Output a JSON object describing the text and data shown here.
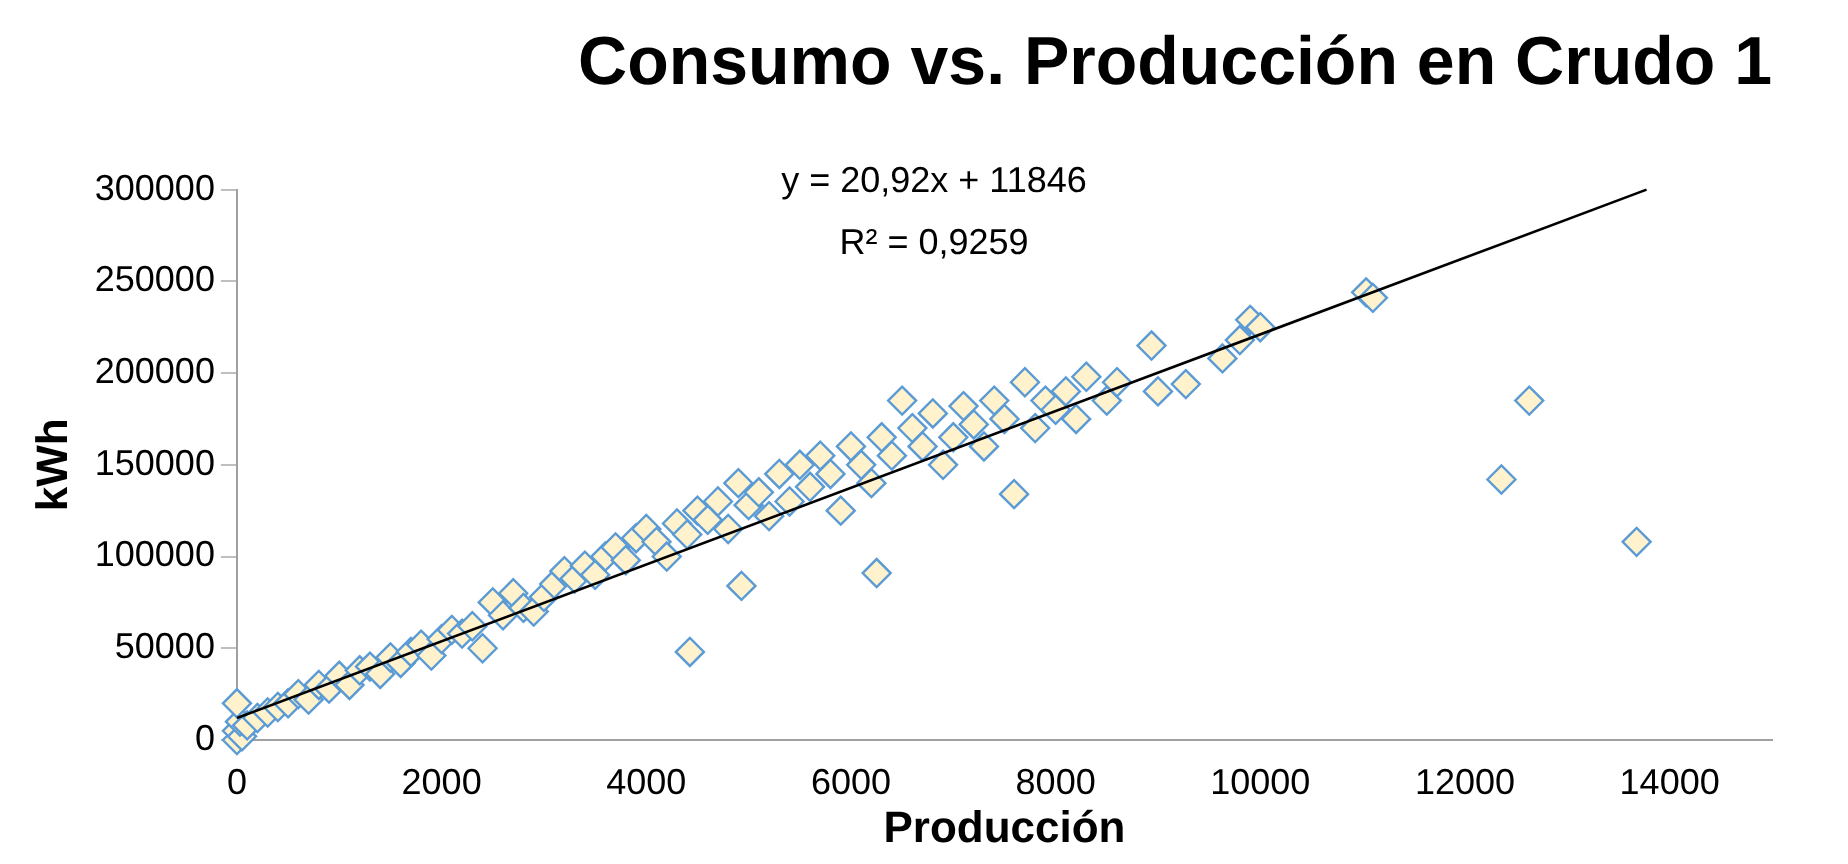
{
  "chart_data": {
    "type": "scatter",
    "title": "Consumo vs. Producción en Crudo 1",
    "xlabel": "Producción",
    "ylabel": "kWh",
    "annotations": [
      "y = 20,92x + 11846",
      "R² = 0,9259"
    ],
    "xlim": [
      0,
      15000
    ],
    "xticks": [
      0,
      2000,
      4000,
      6000,
      8000,
      10000,
      12000,
      14000
    ],
    "ylim": [
      0,
      300000
    ],
    "yticks": [
      0,
      50000,
      100000,
      150000,
      200000,
      250000,
      300000
    ],
    "grid": false,
    "legend": false,
    "marker": "diamond",
    "series": [
      {
        "color": "#fff2cc",
        "x": [
          0,
          0,
          50,
          30,
          0,
          100,
          200,
          300,
          400,
          500,
          600,
          700,
          800,
          900,
          1000,
          1100,
          1200,
          1300,
          1400,
          1500,
          1600,
          1700,
          1800,
          1900,
          2000,
          2100,
          2200,
          2300,
          2400,
          2500,
          2600,
          2700,
          2800,
          2900,
          3000,
          3100,
          3200,
          3300,
          3400,
          3500,
          3600,
          3700,
          3800,
          3900,
          4000,
          4100,
          4200,
          4300,
          4400,
          4426,
          4500,
          4600,
          4700,
          4800,
          4900,
          4930,
          5000,
          5100,
          5200,
          5300,
          5400,
          5500,
          5600,
          5700,
          5800,
          5900,
          6000,
          6100,
          6200,
          6251,
          6300,
          6400,
          6500,
          6600,
          6700,
          6800,
          6900,
          7000,
          7100,
          7200,
          7300,
          7400,
          7500,
          7594,
          7700,
          7800,
          7900,
          8000,
          8100,
          8200,
          8300,
          8500,
          8600,
          8937,
          9000,
          9272,
          9630,
          9800,
          9901,
          10000,
          11034,
          11100,
          12356,
          12628,
          13677
        ],
        "values": [
          0,
          5000,
          2000,
          10000,
          20000,
          8000,
          12000,
          15000,
          18000,
          20000,
          25000,
          22000,
          30000,
          28000,
          35000,
          30000,
          38000,
          40000,
          36000,
          45000,
          42000,
          48000,
          52000,
          46000,
          55000,
          60000,
          58000,
          62000,
          50000,
          75000,
          68000,
          80000,
          72000,
          70000,
          78000,
          85000,
          92000,
          88000,
          95000,
          90000,
          100000,
          105000,
          98000,
          110000,
          115000,
          108000,
          100000,
          118000,
          112000,
          48000,
          125000,
          120000,
          130000,
          115000,
          140000,
          84000,
          128000,
          135000,
          122000,
          145000,
          130000,
          150000,
          138000,
          155000,
          145000,
          125000,
          160000,
          150000,
          140000,
          91000,
          165000,
          155000,
          185000,
          170000,
          160000,
          178000,
          150000,
          165000,
          182000,
          172000,
          160000,
          185000,
          175000,
          134000,
          195000,
          170000,
          185000,
          180000,
          190000,
          175000,
          198000,
          185000,
          195000,
          215000,
          190000,
          194000,
          208000,
          218000,
          229000,
          225000,
          244000,
          241000,
          142000,
          185000,
          108000
        ]
      },
      {
        "type": "line",
        "color": "#000000",
        "marker": "none",
        "x": [
          0,
          13774
        ],
        "values": [
          12000,
          300000
        ]
      }
    ]
  }
}
